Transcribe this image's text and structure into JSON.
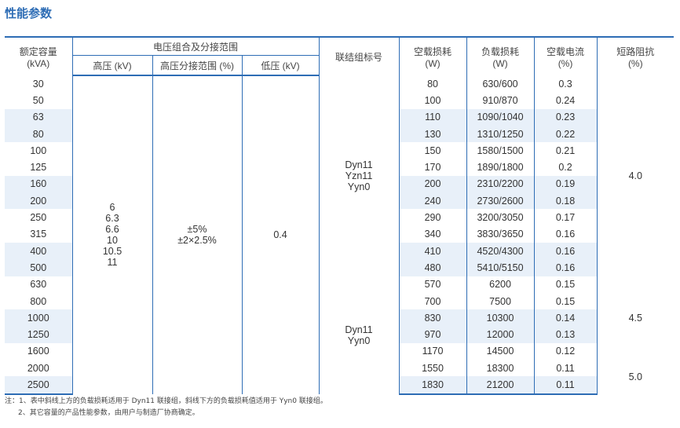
{
  "title": "性能参数",
  "headers": {
    "capacity": "额定容量",
    "capacity_unit": "(kVA)",
    "voltage_group": "电压组合及分接范围",
    "hv": "高压 (kV)",
    "tap_range": "高压分接范围 (%)",
    "lv": "低压 (kV)",
    "vector_group": "联结组标号",
    "noload_loss": "空载损耗",
    "noload_loss_unit": "(W)",
    "load_loss": "负载损耗",
    "load_loss_unit": "(W)",
    "noload_current": "空载电流",
    "noload_current_unit": "(%)",
    "impedance": "短路阻抗",
    "impedance_unit": "(%)"
  },
  "hv_values": [
    "6",
    "6.3",
    "6.6",
    "10",
    "10.5",
    "11"
  ],
  "tap_values": [
    "±5%",
    "±2×2.5%"
  ],
  "lv_value": "0.4",
  "vector_groups": [
    [
      "Dyn11",
      "Yzn11",
      "Yyn0"
    ],
    [
      "Dyn11",
      "Yyn0"
    ]
  ],
  "impedance_values": [
    "4.0",
    "4.5",
    "5.0"
  ],
  "rows": [
    {
      "cap": "30",
      "nl": "80",
      "ll": "630/600",
      "nc": "0.3"
    },
    {
      "cap": "50",
      "nl": "100",
      "ll": "910/870",
      "nc": "0.24"
    },
    {
      "cap": "63",
      "nl": "110",
      "ll": "1090/1040",
      "nc": "0.23"
    },
    {
      "cap": "80",
      "nl": "130",
      "ll": "1310/1250",
      "nc": "0.22"
    },
    {
      "cap": "100",
      "nl": "150",
      "ll": "1580/1500",
      "nc": "0.21"
    },
    {
      "cap": "125",
      "nl": "170",
      "ll": "1890/1800",
      "nc": "0.2"
    },
    {
      "cap": "160",
      "nl": "200",
      "ll": "2310/2200",
      "nc": "0.19"
    },
    {
      "cap": "200",
      "nl": "240",
      "ll": "2730/2600",
      "nc": "0.18"
    },
    {
      "cap": "250",
      "nl": "290",
      "ll": "3200/3050",
      "nc": "0.17"
    },
    {
      "cap": "315",
      "nl": "340",
      "ll": "3830/3650",
      "nc": "0.16"
    },
    {
      "cap": "400",
      "nl": "410",
      "ll": "4520/4300",
      "nc": "0.16"
    },
    {
      "cap": "500",
      "nl": "480",
      "ll": "5410/5150",
      "nc": "0.16"
    },
    {
      "cap": "630",
      "nl": "570",
      "ll": "6200",
      "nc": "0.15"
    },
    {
      "cap": "800",
      "nl": "700",
      "ll": "7500",
      "nc": "0.15"
    },
    {
      "cap": "1000",
      "nl": "830",
      "ll": "10300",
      "nc": "0.14"
    },
    {
      "cap": "1250",
      "nl": "970",
      "ll": "12000",
      "nc": "0.13"
    },
    {
      "cap": "1600",
      "nl": "1170",
      "ll": "14500",
      "nc": "0.12"
    },
    {
      "cap": "2000",
      "nl": "1550",
      "ll": "18300",
      "nc": "0.11"
    },
    {
      "cap": "2500",
      "nl": "1830",
      "ll": "21200",
      "nc": "0.11"
    }
  ],
  "notes": [
    "注：1、表中斜线上方的负载损耗适用于 Dyn11 联接组，斜线下方的负载损耗值适用于 Yyn0 联接组。",
    "2、其它容量的产品性能参数，由用户与制造厂协商确定。"
  ],
  "colors": {
    "accent": "#2e6db5",
    "row_shade": "#e8f0f9"
  }
}
